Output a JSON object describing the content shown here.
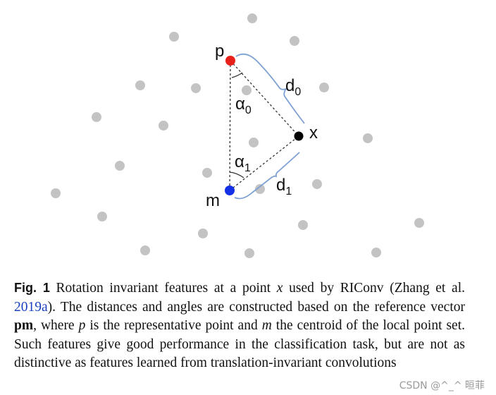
{
  "figure": {
    "labels": {
      "p": "p",
      "m": "m",
      "x": "x",
      "d0_base": "d",
      "d0_sub": "0",
      "d1_base": "d",
      "d1_sub": "1",
      "a0_base": "α",
      "a0_sub": "0",
      "a1_base": "α",
      "a1_sub": "1"
    },
    "colors": {
      "background_point": "#c3c3c3",
      "point_p": "#e8201a",
      "point_m": "#1430e6",
      "point_x": "#000000",
      "brace": "#7ea1d4",
      "dashed_line": "#333333"
    }
  },
  "caption": {
    "fig_label": "Fig. 1",
    "text_1": " Rotation invariant features at a point ",
    "x_var": "x",
    "text_2": " used by RIConv (Zhang et al. ",
    "citation": "2019a",
    "text_3": "). The distances and angles are constructed based on the reference vector ",
    "pm": "pm",
    "text_4": ", where ",
    "p_var": "p",
    "text_5": " is the representative point and ",
    "m_var": "m",
    "text_6": " the centroid of the local point set. Such features give good performance in the classification task, but are not as distinctive as features learned from translation-invariant convolutions"
  },
  "watermark": "CSDN @^_^ 晅菲"
}
